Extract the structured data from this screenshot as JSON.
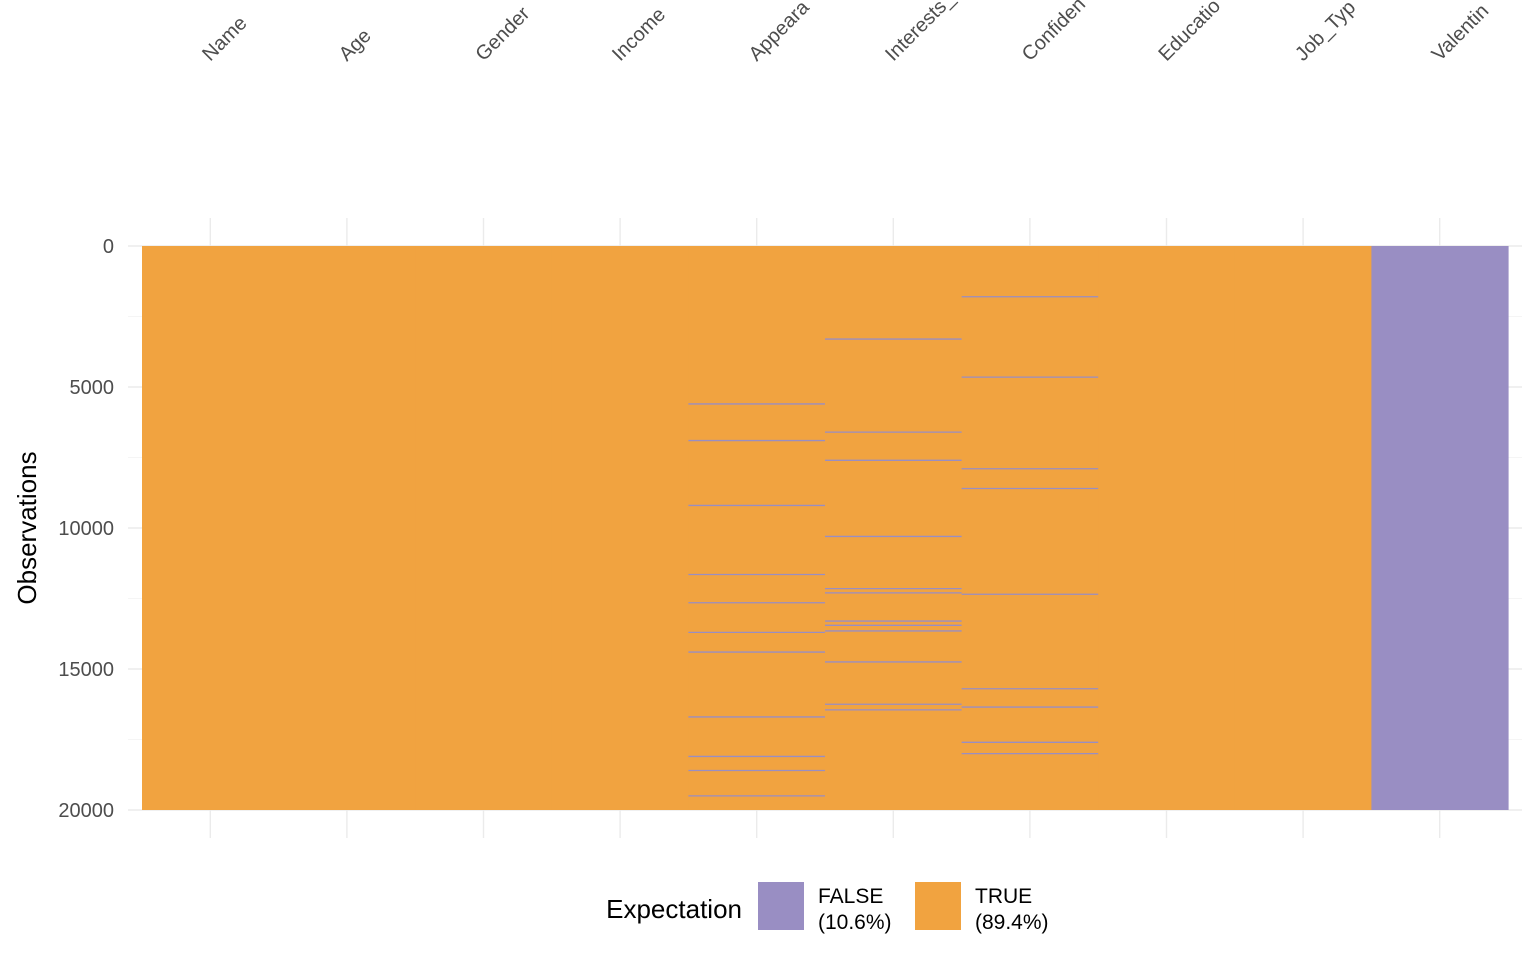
{
  "chart_data": {
    "type": "heatmap",
    "title": "",
    "xlabel": "",
    "ylabel": "Observations",
    "ylim": [
      0,
      20000
    ],
    "y_reversed": true,
    "y_ticks": [
      "0",
      "5000",
      "10000",
      "15000",
      "20000"
    ],
    "y_tick_values": [
      0,
      5000,
      10000,
      15000,
      20000
    ],
    "columns": [
      "Name",
      "Age",
      "Gender",
      "Income",
      "Appearance_Score",
      "Interests_Score",
      "Confidence_Score",
      "Education_Level",
      "Job_Type",
      "Valentine_Date"
    ],
    "column_labels_visible": [
      "Name",
      "Age",
      "Gender",
      "Income",
      "Appeara",
      "Interests_",
      "Confiden",
      "Educatio",
      "Job_Typ",
      "Valentin"
    ],
    "n_observations": 20000,
    "default_value": "TRUE",
    "all_false_columns": [
      "Valentine_Date"
    ],
    "false_rows": {
      "Appearance_Score": [
        5600,
        6900,
        9200,
        11650,
        12650,
        13700,
        14400,
        16700,
        18100,
        18600,
        19500
      ],
      "Interests_Score": [
        3300,
        6600,
        7600,
        10300,
        12150,
        12300,
        13300,
        13450,
        13650,
        14750,
        16250,
        16450
      ],
      "Confidence_Score": [
        1800,
        4650,
        7900,
        8600,
        12350,
        15700,
        16350,
        17600,
        18000
      ]
    },
    "grid": true,
    "legend_position": "bottom",
    "legend": {
      "title": "Expectation",
      "entries": [
        {
          "label": "FALSE",
          "pct": "(10.6%)",
          "color": "#998ec3"
        },
        {
          "label": "TRUE",
          "pct": "(89.4%)",
          "color": "#f1a340"
        }
      ]
    },
    "colors": {
      "TRUE": "#f1a340",
      "FALSE": "#998ec3"
    }
  }
}
